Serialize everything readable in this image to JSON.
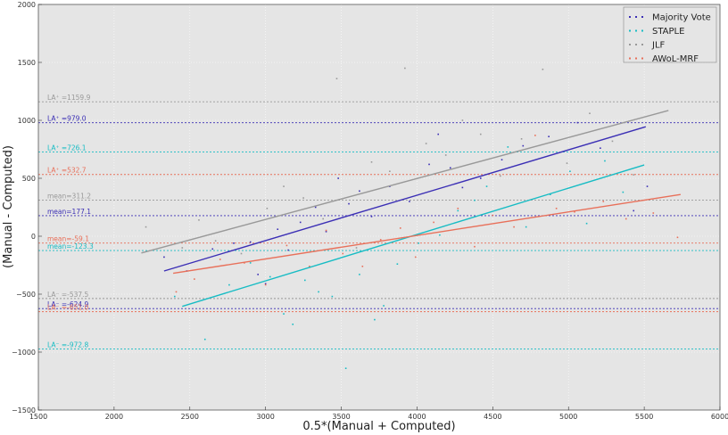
{
  "chart_data": {
    "type": "scatter",
    "title": "",
    "xlabel": "0.5*(Manual + Computed)",
    "ylabel": "(Manual - Computed)",
    "xlim": [
      1500,
      6000
    ],
    "ylim": [
      -1500,
      2000
    ],
    "x_ticks": [
      1500,
      2000,
      2500,
      3000,
      3500,
      4000,
      4500,
      5000,
      5500,
      6000
    ],
    "y_ticks": [
      -1500,
      -1000,
      -500,
      0,
      500,
      1000,
      1500,
      2000
    ],
    "x_tick_labels": [
      "1500",
      "2000",
      "2500",
      "3000",
      "3500",
      "4000",
      "4500",
      "5000",
      "5500",
      "6000"
    ],
    "y_tick_labels": [
      "−1500",
      "−1000",
      "−500",
      "0",
      "500",
      "1000",
      "1500",
      "2000"
    ],
    "grid": true,
    "legend_position": "top-right",
    "series": [
      {
        "name": "Majority Vote",
        "color": "#3b2fb5",
        "points": [
          [
            2330,
            -180
          ],
          [
            2480,
            -300
          ],
          [
            2650,
            -110
          ],
          [
            2790,
            -60
          ],
          [
            2900,
            -50
          ],
          [
            2950,
            -330
          ],
          [
            3000,
            -410
          ],
          [
            3080,
            60
          ],
          [
            3150,
            -120
          ],
          [
            3230,
            120
          ],
          [
            3330,
            250
          ],
          [
            3400,
            40
          ],
          [
            3480,
            500
          ],
          [
            3550,
            280
          ],
          [
            3620,
            390
          ],
          [
            3700,
            170
          ],
          [
            3820,
            430
          ],
          [
            3950,
            300
          ],
          [
            4080,
            620
          ],
          [
            4140,
            880
          ],
          [
            4220,
            590
          ],
          [
            4300,
            420
          ],
          [
            4420,
            500
          ],
          [
            4560,
            660
          ],
          [
            4700,
            780
          ],
          [
            4870,
            860
          ],
          [
            5060,
            980
          ],
          [
            5210,
            760
          ],
          [
            5430,
            220
          ],
          [
            5520,
            430
          ]
        ],
        "trend": {
          "x": [
            2330,
            5510
          ],
          "y": [
            -300,
            945
          ]
        },
        "refs": [
          {
            "y": 979.0,
            "label": "LA⁺ =979.0"
          },
          {
            "y": 177.1,
            "label": "mean=177.1"
          },
          {
            "y": -624.9,
            "label": "LA⁻ =-624.9"
          }
        ]
      },
      {
        "name": "STAPLE",
        "color": "#17bcc4",
        "points": [
          [
            2400,
            -520
          ],
          [
            2600,
            -890
          ],
          [
            2760,
            -420
          ],
          [
            2900,
            -230
          ],
          [
            3030,
            -350
          ],
          [
            3120,
            -670
          ],
          [
            3180,
            -760
          ],
          [
            3260,
            -380
          ],
          [
            3350,
            -480
          ],
          [
            3440,
            -520
          ],
          [
            3530,
            -1140
          ],
          [
            3620,
            -330
          ],
          [
            3720,
            -720
          ],
          [
            3780,
            -600
          ],
          [
            3870,
            -240
          ],
          [
            4010,
            -60
          ],
          [
            4150,
            10
          ],
          [
            4270,
            220
          ],
          [
            4380,
            310
          ],
          [
            4460,
            430
          ],
          [
            4600,
            770
          ],
          [
            4720,
            80
          ],
          [
            4880,
            360
          ],
          [
            5010,
            560
          ],
          [
            5120,
            110
          ],
          [
            5240,
            650
          ],
          [
            5360,
            380
          ]
        ],
        "trend": {
          "x": [
            2450,
            5500
          ],
          "y": [
            -605,
            615
          ]
        },
        "refs": [
          {
            "y": 726.1,
            "label": "LA⁺ =726.1"
          },
          {
            "y": -123.3,
            "label": "mean=-123.3"
          },
          {
            "y": -972.8,
            "label": "LA⁻ =-972.8"
          }
        ]
      },
      {
        "name": "JLF",
        "color": "#999999",
        "points": [
          [
            2210,
            80
          ],
          [
            2450,
            -100
          ],
          [
            2560,
            140
          ],
          [
            2670,
            -40
          ],
          [
            2840,
            -150
          ],
          [
            3010,
            240
          ],
          [
            3120,
            430
          ],
          [
            3250,
            330
          ],
          [
            3380,
            150
          ],
          [
            3470,
            1360
          ],
          [
            3600,
            -100
          ],
          [
            3700,
            640
          ],
          [
            3820,
            560
          ],
          [
            3920,
            1450
          ],
          [
            4060,
            800
          ],
          [
            4190,
            700
          ],
          [
            4300,
            1000
          ],
          [
            4420,
            880
          ],
          [
            4550,
            520
          ],
          [
            4690,
            840
          ],
          [
            4830,
            1440
          ],
          [
            4990,
            630
          ],
          [
            5140,
            1060
          ],
          [
            5290,
            820
          ],
          [
            5430,
            530
          ]
        ],
        "trend": {
          "x": [
            2180,
            5660
          ],
          "y": [
            -145,
            1085
          ]
        },
        "refs": [
          {
            "y": 1159.9,
            "label": "LA⁺ =1159.9"
          },
          {
            "y": 311.2,
            "label": "mean=311.2"
          },
          {
            "y": -537.5,
            "label": "LA⁻ =-537.5"
          }
        ]
      },
      {
        "name": "AWoL-MRF",
        "color": "#e8705a",
        "points": [
          [
            2410,
            -480
          ],
          [
            2530,
            -370
          ],
          [
            2700,
            -200
          ],
          [
            2860,
            -230
          ],
          [
            3000,
            -420
          ],
          [
            3140,
            -80
          ],
          [
            3290,
            -260
          ],
          [
            3400,
            50
          ],
          [
            3510,
            -150
          ],
          [
            3640,
            -260
          ],
          [
            3760,
            -30
          ],
          [
            3890,
            70
          ],
          [
            3990,
            -180
          ],
          [
            4110,
            120
          ],
          [
            4270,
            240
          ],
          [
            4380,
            -90
          ],
          [
            4500,
            180
          ],
          [
            4640,
            80
          ],
          [
            4780,
            870
          ],
          [
            4920,
            240
          ],
          [
            5040,
            210
          ],
          [
            5230,
            300
          ],
          [
            5380,
            150
          ],
          [
            5560,
            200
          ],
          [
            5720,
            -10
          ]
        ],
        "trend": {
          "x": [
            2390,
            5740
          ],
          "y": [
            -320,
            360
          ]
        },
        "refs": [
          {
            "y": 532.7,
            "label": "LA⁺ =532.7"
          },
          {
            "y": -59.1,
            "label": "mean=-59.1"
          },
          {
            "y": -651.0,
            "label": "LA⁻ =-651.0"
          }
        ]
      }
    ]
  }
}
